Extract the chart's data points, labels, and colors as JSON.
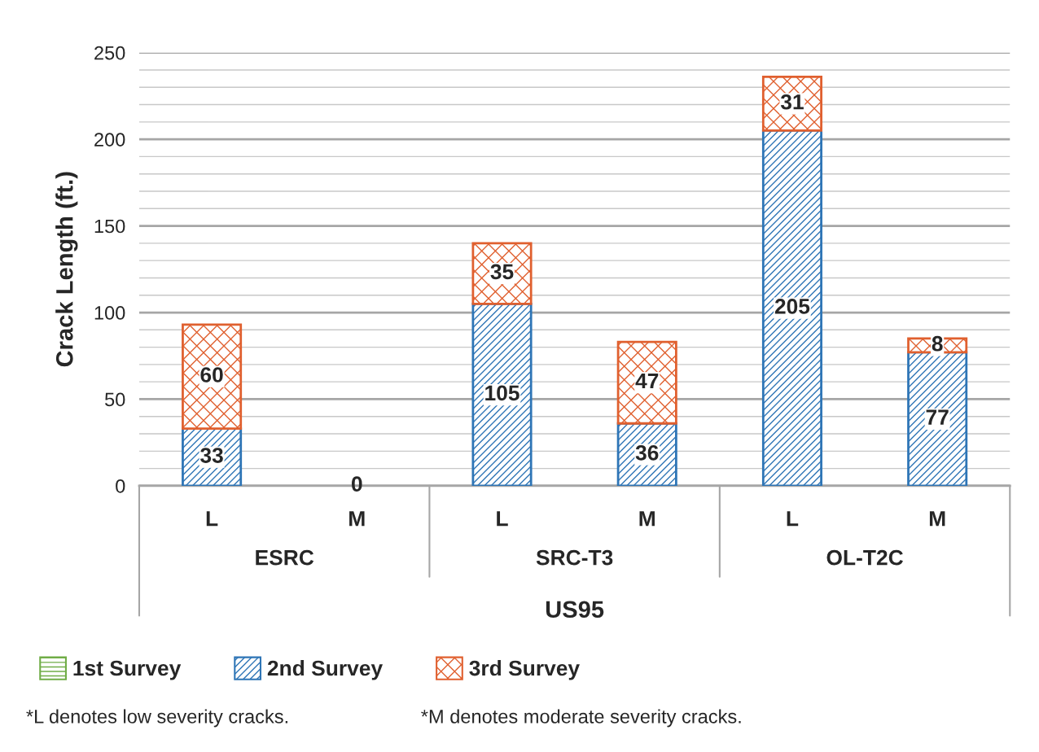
{
  "chart_data": {
    "type": "bar",
    "stacked": true,
    "ylabel": "Crack Length (ft.)",
    "xlabel": "US95",
    "categories": [
      "L",
      "M",
      "L",
      "M",
      "L",
      "M"
    ],
    "series": [
      {
        "name": "1st Survey",
        "color": "#70ad47",
        "values": [
          null,
          null,
          null,
          null,
          null,
          null
        ]
      },
      {
        "name": "2nd Survey",
        "color": "#2e75b6",
        "values": [
          33,
          0,
          105,
          36,
          205,
          77
        ],
        "value_labels": [
          "33",
          "0",
          "105",
          "36",
          "205",
          "77"
        ]
      },
      {
        "name": "3rd Survey",
        "color": "#e0602f",
        "values": [
          60,
          null,
          35,
          47,
          31,
          8
        ],
        "value_labels": [
          "60",
          null,
          "35",
          "47",
          "31",
          "8"
        ]
      }
    ],
    "ylim": [
      0,
      250
    ],
    "yticks": [
      0,
      50,
      100,
      150,
      200,
      250
    ],
    "grid": "y",
    "legend": "bottom left",
    "annotations": [
      "ESRC",
      "SRC-T3",
      "OL-T2C",
      "*L denotes low severity cracks.",
      "*M denotes moderate severity cracks."
    ]
  }
}
